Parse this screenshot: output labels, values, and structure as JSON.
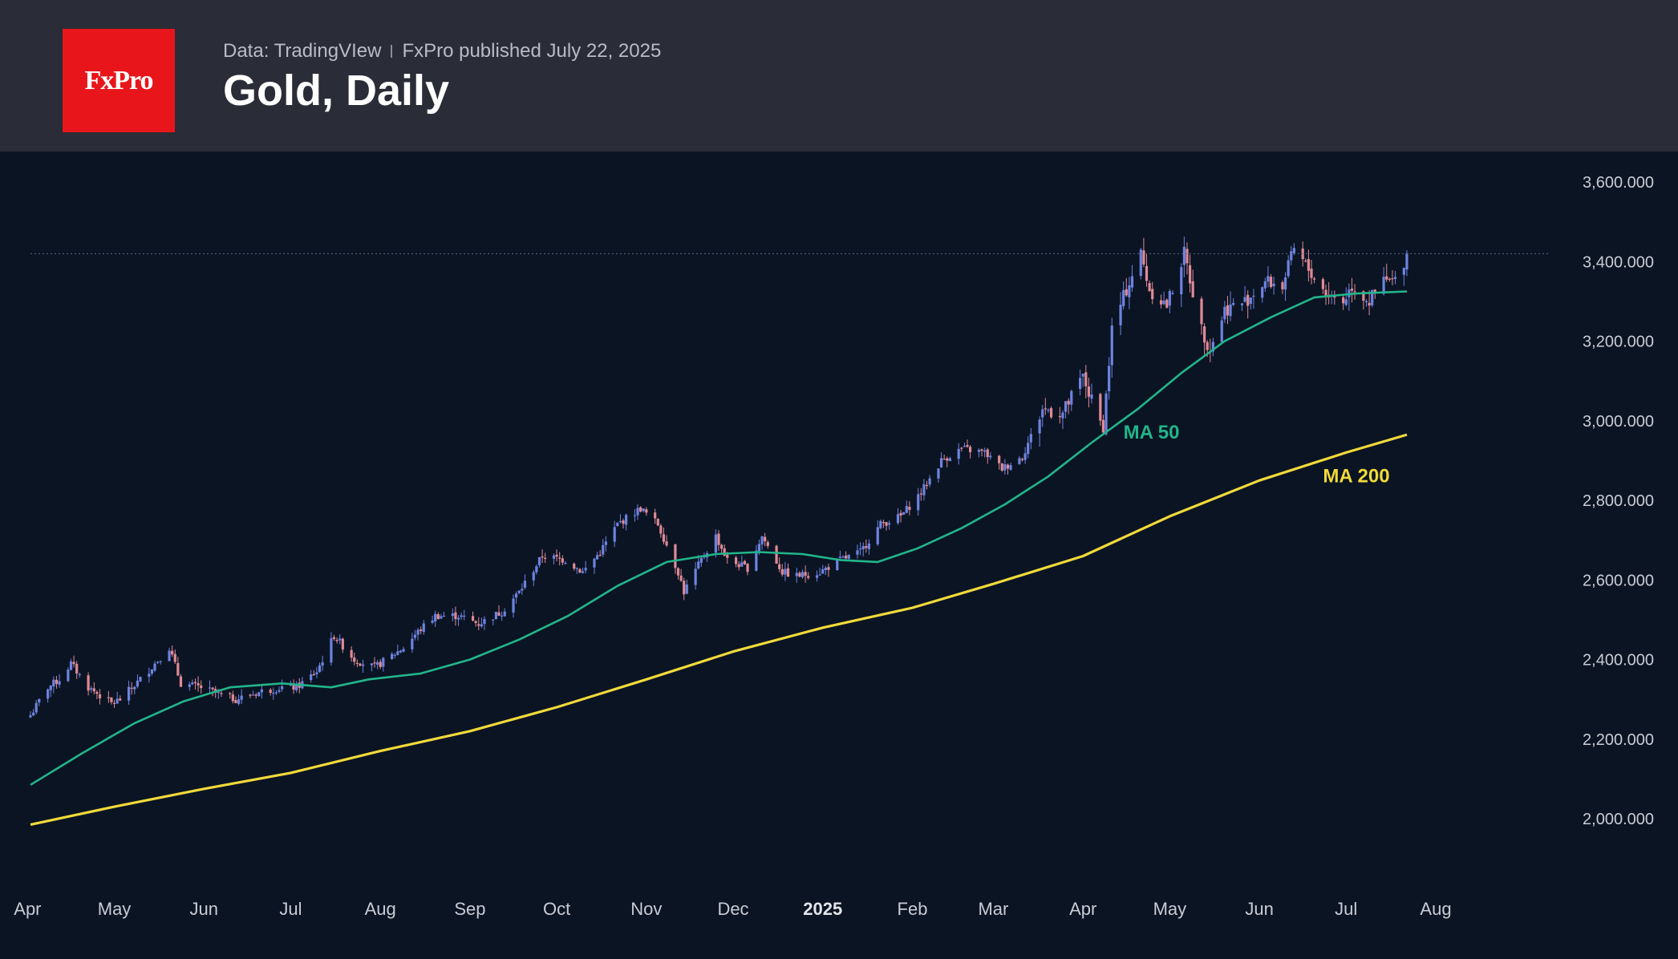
{
  "header": {
    "logo_text": "FxPro",
    "data_source": "Data: TradingVIew",
    "publisher": "FxPro published July 22, 2025",
    "title": "Gold, Daily"
  },
  "colors": {
    "background": "#0b1423",
    "header_bg": "#2a2c37",
    "logo_bg": "#e8161b",
    "candle_up": "#6d83e0",
    "candle_down": "#e08a95",
    "ma50": "#22b58a",
    "ma200": "#f1da3a",
    "axis_text": "#c9ccd4"
  },
  "chart_data": {
    "type": "candlestick",
    "title": "Gold, Daily",
    "xlabel": "",
    "ylabel": "",
    "ylim": [
      1850,
      3700
    ],
    "y_ticks": [
      2000,
      2200,
      2400,
      2600,
      2800,
      3000,
      3200,
      3400,
      3600
    ],
    "y_tick_labels": [
      "2,000.000",
      "2,200.000",
      "2,400.000",
      "2,600.000",
      "2,800.000",
      "3,000.000",
      "3,200.000",
      "3,400.000",
      "3,600.000"
    ],
    "x_tick_labels": [
      "Apr",
      "May",
      "Jun",
      "Jul",
      "Aug",
      "Sep",
      "Oct",
      "Nov",
      "Dec",
      "2025",
      "Feb",
      "Mar",
      "Apr",
      "May",
      "Jun",
      "Jul",
      "Aug"
    ],
    "x_tick_bold": [
      false,
      false,
      false,
      false,
      false,
      false,
      false,
      false,
      false,
      true,
      false,
      false,
      false,
      false,
      false,
      false,
      false
    ],
    "x_start": "2024-04-02",
    "x_end": "2025-08-01",
    "last_price_line": 3420,
    "grid": false,
    "close_series": [
      [
        "2024-04-02",
        2260
      ],
      [
        "2024-04-08",
        2330
      ],
      [
        "2024-04-12",
        2350
      ],
      [
        "2024-04-16",
        2390
      ],
      [
        "2024-04-22",
        2330
      ],
      [
        "2024-04-30",
        2290
      ],
      [
        "2024-05-03",
        2300
      ],
      [
        "2024-05-10",
        2350
      ],
      [
        "2024-05-15",
        2390
      ],
      [
        "2024-05-20",
        2430
      ],
      [
        "2024-05-24",
        2340
      ],
      [
        "2024-05-31",
        2330
      ],
      [
        "2024-06-07",
        2310
      ],
      [
        "2024-06-12",
        2300
      ],
      [
        "2024-06-21",
        2320
      ],
      [
        "2024-06-28",
        2330
      ],
      [
        "2024-07-03",
        2330
      ],
      [
        "2024-07-10",
        2370
      ],
      [
        "2024-07-16",
        2460
      ],
      [
        "2024-07-23",
        2400
      ],
      [
        "2024-07-30",
        2380
      ],
      [
        "2024-08-05",
        2410
      ],
      [
        "2024-08-09",
        2430
      ],
      [
        "2024-08-14",
        2470
      ],
      [
        "2024-08-20",
        2510
      ],
      [
        "2024-08-28",
        2510
      ],
      [
        "2024-09-04",
        2490
      ],
      [
        "2024-09-12",
        2520
      ],
      [
        "2024-09-18",
        2570
      ],
      [
        "2024-09-26",
        2660
      ],
      [
        "2024-10-04",
        2650
      ],
      [
        "2024-10-10",
        2620
      ],
      [
        "2024-10-16",
        2670
      ],
      [
        "2024-10-22",
        2740
      ],
      [
        "2024-10-30",
        2780
      ],
      [
        "2024-11-05",
        2740
      ],
      [
        "2024-11-12",
        2620
      ],
      [
        "2024-11-14",
        2570
      ],
      [
        "2024-11-20",
        2650
      ],
      [
        "2024-11-25",
        2710
      ],
      [
        "2024-11-29",
        2650
      ],
      [
        "2024-12-06",
        2630
      ],
      [
        "2024-12-11",
        2710
      ],
      [
        "2024-12-18",
        2620
      ],
      [
        "2024-12-23",
        2610
      ],
      [
        "2024-12-31",
        2620
      ],
      [
        "2025-01-07",
        2650
      ],
      [
        "2025-01-14",
        2670
      ],
      [
        "2025-01-21",
        2740
      ],
      [
        "2025-01-28",
        2760
      ],
      [
        "2025-02-04",
        2820
      ],
      [
        "2025-02-11",
        2900
      ],
      [
        "2025-02-18",
        2930
      ],
      [
        "2025-02-26",
        2920
      ],
      [
        "2025-03-04",
        2880
      ],
      [
        "2025-03-11",
        2910
      ],
      [
        "2025-03-18",
        3030
      ],
      [
        "2025-03-25",
        3020
      ],
      [
        "2025-04-01",
        3110
      ],
      [
        "2025-04-04",
        3050
      ],
      [
        "2025-04-08",
        2980
      ],
      [
        "2025-04-11",
        3230
      ],
      [
        "2025-04-16",
        3330
      ],
      [
        "2025-04-21",
        3420
      ],
      [
        "2025-04-24",
        3330
      ],
      [
        "2025-04-30",
        3290
      ],
      [
        "2025-05-06",
        3420
      ],
      [
        "2025-05-12",
        3230
      ],
      [
        "2025-05-15",
        3180
      ],
      [
        "2025-05-20",
        3280
      ],
      [
        "2025-05-27",
        3300
      ],
      [
        "2025-06-03",
        3350
      ],
      [
        "2025-06-09",
        3340
      ],
      [
        "2025-06-13",
        3430
      ],
      [
        "2025-06-19",
        3370
      ],
      [
        "2025-06-24",
        3320
      ],
      [
        "2025-06-30",
        3300
      ],
      [
        "2025-07-03",
        3340
      ],
      [
        "2025-07-09",
        3300
      ],
      [
        "2025-07-14",
        3350
      ],
      [
        "2025-07-18",
        3350
      ],
      [
        "2025-07-22",
        3420
      ]
    ],
    "series": [
      {
        "name": "MA 50",
        "color": "#22b58a",
        "points": [
          [
            "2024-04-02",
            2085
          ],
          [
            "2024-04-20",
            2165
          ],
          [
            "2024-05-08",
            2240
          ],
          [
            "2024-05-25",
            2295
          ],
          [
            "2024-06-10",
            2330
          ],
          [
            "2024-06-28",
            2340
          ],
          [
            "2024-07-15",
            2330
          ],
          [
            "2024-07-28",
            2350
          ],
          [
            "2024-08-15",
            2365
          ],
          [
            "2024-09-01",
            2400
          ],
          [
            "2024-09-18",
            2450
          ],
          [
            "2024-10-05",
            2510
          ],
          [
            "2024-10-22",
            2585
          ],
          [
            "2024-11-08",
            2645
          ],
          [
            "2024-11-25",
            2665
          ],
          [
            "2024-12-10",
            2670
          ],
          [
            "2024-12-25",
            2665
          ],
          [
            "2025-01-07",
            2650
          ],
          [
            "2025-01-20",
            2645
          ],
          [
            "2025-02-03",
            2680
          ],
          [
            "2025-02-18",
            2730
          ],
          [
            "2025-03-05",
            2790
          ],
          [
            "2025-03-20",
            2860
          ],
          [
            "2025-04-04",
            2945
          ],
          [
            "2025-04-20",
            3030
          ],
          [
            "2025-05-05",
            3120
          ],
          [
            "2025-05-20",
            3200
          ],
          [
            "2025-06-05",
            3260
          ],
          [
            "2025-06-20",
            3310
          ],
          [
            "2025-07-05",
            3320
          ],
          [
            "2025-07-22",
            3325
          ]
        ]
      },
      {
        "name": "MA 200",
        "color": "#f1da3a",
        "points": [
          [
            "2024-04-02",
            1985
          ],
          [
            "2024-05-01",
            2030
          ],
          [
            "2024-06-01",
            2075
          ],
          [
            "2024-07-01",
            2115
          ],
          [
            "2024-08-01",
            2170
          ],
          [
            "2024-09-01",
            2220
          ],
          [
            "2024-10-01",
            2280
          ],
          [
            "2024-11-01",
            2350
          ],
          [
            "2024-12-01",
            2420
          ],
          [
            "2025-01-01",
            2480
          ],
          [
            "2025-02-01",
            2530
          ],
          [
            "2025-03-01",
            2590
          ],
          [
            "2025-04-01",
            2660
          ],
          [
            "2025-05-01",
            2760
          ],
          [
            "2025-06-01",
            2850
          ],
          [
            "2025-07-01",
            2920
          ],
          [
            "2025-07-22",
            2965
          ]
        ]
      }
    ],
    "annotations": [
      {
        "text": "MA 50",
        "date": "2025-04-15",
        "price": 2955,
        "color": "#22b58a"
      },
      {
        "text": "MA 200",
        "date": "2025-06-23",
        "price": 2845,
        "color": "#f1da3a"
      }
    ]
  }
}
